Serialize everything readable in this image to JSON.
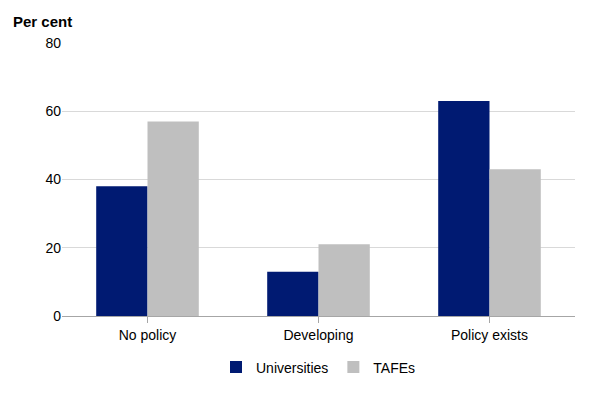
{
  "chart_data": {
    "type": "bar",
    "y_label": "Per cent",
    "categories": [
      "No policy",
      "Developing",
      "Policy exists"
    ],
    "series": [
      {
        "name": "Universities",
        "color": "#001a72",
        "values": [
          38,
          13,
          63
        ]
      },
      {
        "name": "TAFEs",
        "color": "#bfbfbf",
        "values": [
          57,
          21,
          43
        ]
      }
    ],
    "ylim": [
      0,
      80
    ],
    "yticks": [
      0,
      20,
      40,
      60,
      80
    ],
    "grid": true,
    "legend": "bottom"
  }
}
